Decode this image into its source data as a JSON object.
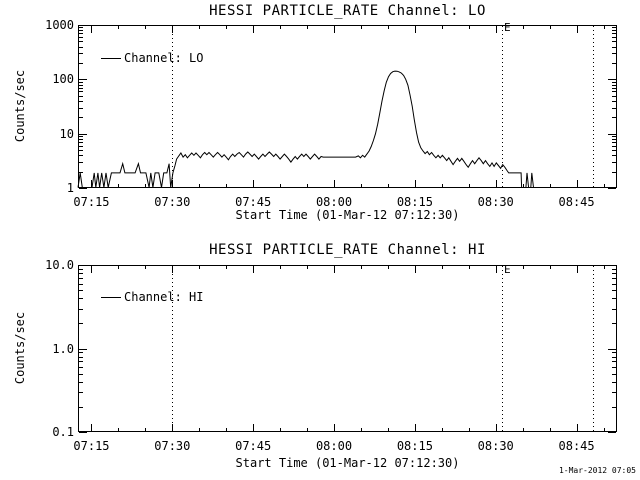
{
  "page": {
    "background": "#ffffff",
    "foreground": "#000000",
    "timestamp": "1-Mar-2012 07:05"
  },
  "chart_data": [
    {
      "type": "line",
      "title": "HESSI PARTICLE_RATE Channel: LO",
      "xlabel": "Start Time (01-Mar-12 07:12:30)",
      "ylabel": "Counts/sec",
      "yscale": "log",
      "ylim": [
        1,
        1000
      ],
      "y_ticks": {
        "values": [
          1,
          10,
          100,
          1000
        ],
        "labels": [
          "1",
          "10",
          "100",
          "1000"
        ]
      },
      "x_range_minutes": [
        0,
        100
      ],
      "x_ticks": {
        "minutes": [
          2.5,
          17.5,
          32.5,
          47.5,
          62.5,
          77.5,
          92.5
        ],
        "labels": [
          "07:15",
          "07:30",
          "07:45",
          "08:00",
          "08:15",
          "08:30",
          "08:45"
        ],
        "minor_step_minutes": 5
      },
      "grid": false,
      "legend": {
        "label": "Channel: LO",
        "position": "upper-left-inside"
      },
      "event_lines": [
        {
          "minutes": 17.5,
          "time": "07:30",
          "label": ""
        },
        {
          "minutes": 78.7,
          "time": "08:31",
          "label": "E"
        },
        {
          "minutes": 95.5,
          "time": "08:48",
          "label": ""
        }
      ],
      "series": [
        {
          "name": "Channel: LO",
          "points": [
            [
              0,
              1
            ],
            [
              0.4,
              1.9
            ],
            [
              0.8,
              1
            ],
            [
              2.6,
              1
            ],
            [
              3.0,
              1.9
            ],
            [
              3.3,
              1
            ],
            [
              3.7,
              1.9
            ],
            [
              4.0,
              1
            ],
            [
              4.4,
              1.9
            ],
            [
              4.8,
              1
            ],
            [
              5.2,
              1.9
            ],
            [
              5.6,
              1
            ],
            [
              6.2,
              1.9
            ],
            [
              7.0,
              1.9
            ],
            [
              7.8,
              1.9
            ],
            [
              8.3,
              2.8
            ],
            [
              8.7,
              1.9
            ],
            [
              9.6,
              1.9
            ],
            [
              10.6,
              1.9
            ],
            [
              11.2,
              2.8
            ],
            [
              11.6,
              1.9
            ],
            [
              12.6,
              1.9
            ],
            [
              13.2,
              1
            ],
            [
              13.5,
              1.9
            ],
            [
              13.9,
              1
            ],
            [
              14.3,
              1.9
            ],
            [
              15.0,
              1.9
            ],
            [
              15.5,
              1
            ],
            [
              15.9,
              1.9
            ],
            [
              16.5,
              1.9
            ],
            [
              16.9,
              2.8
            ],
            [
              17.2,
              1
            ],
            [
              17.6,
              1.9
            ],
            [
              18.0,
              2.6
            ],
            [
              18.3,
              3.4
            ],
            [
              18.7,
              3.9
            ],
            [
              19.1,
              4.4
            ],
            [
              19.5,
              3.7
            ],
            [
              19.9,
              4.1
            ],
            [
              20.3,
              3.6
            ],
            [
              20.7,
              4.0
            ],
            [
              21.1,
              4.4
            ],
            [
              21.5,
              4.0
            ],
            [
              21.9,
              4.4
            ],
            [
              22.3,
              4.0
            ],
            [
              22.7,
              3.6
            ],
            [
              23.1,
              4.1
            ],
            [
              23.5,
              4.5
            ],
            [
              23.9,
              4.1
            ],
            [
              24.3,
              4.5
            ],
            [
              24.7,
              4.1
            ],
            [
              25.1,
              3.7
            ],
            [
              25.5,
              4.1
            ],
            [
              25.9,
              4.5
            ],
            [
              26.3,
              4.1
            ],
            [
              26.7,
              3.7
            ],
            [
              27.1,
              4.1
            ],
            [
              27.5,
              3.7
            ],
            [
              27.9,
              3.3
            ],
            [
              28.3,
              3.8
            ],
            [
              28.7,
              4.2
            ],
            [
              29.1,
              3.8
            ],
            [
              29.5,
              4.2
            ],
            [
              29.9,
              4.5
            ],
            [
              30.3,
              4.1
            ],
            [
              30.7,
              3.7
            ],
            [
              31.1,
              4.2
            ],
            [
              31.5,
              4.6
            ],
            [
              31.9,
              4.2
            ],
            [
              32.3,
              3.8
            ],
            [
              32.7,
              4.2
            ],
            [
              33.1,
              3.8
            ],
            [
              33.5,
              3.4
            ],
            [
              33.9,
              3.8
            ],
            [
              34.3,
              4.2
            ],
            [
              34.7,
              3.8
            ],
            [
              35.1,
              4.2
            ],
            [
              35.5,
              4.6
            ],
            [
              35.9,
              4.2
            ],
            [
              36.3,
              3.8
            ],
            [
              36.7,
              4.2
            ],
            [
              37.1,
              3.8
            ],
            [
              37.5,
              3.4
            ],
            [
              37.9,
              3.8
            ],
            [
              38.3,
              4.2
            ],
            [
              38.7,
              3.8
            ],
            [
              39.1,
              3.4
            ],
            [
              39.5,
              3.0
            ],
            [
              39.9,
              3.4
            ],
            [
              40.3,
              3.8
            ],
            [
              40.7,
              3.4
            ],
            [
              41.1,
              3.8
            ],
            [
              41.5,
              4.2
            ],
            [
              41.9,
              3.8
            ],
            [
              42.3,
              4.2
            ],
            [
              42.7,
              3.8
            ],
            [
              43.1,
              3.4
            ],
            [
              43.5,
              3.8
            ],
            [
              43.9,
              4.2
            ],
            [
              44.3,
              3.8
            ],
            [
              44.7,
              3.4
            ],
            [
              45.1,
              3.8
            ],
            [
              45.5,
              3.7
            ],
            [
              46.5,
              3.7
            ],
            [
              47.5,
              3.7
            ],
            [
              48.5,
              3.7
            ],
            [
              49.5,
              3.7
            ],
            [
              50.5,
              3.7
            ],
            [
              51.5,
              3.7
            ],
            [
              52.0,
              3.9
            ],
            [
              52.4,
              3.6
            ],
            [
              52.8,
              4.0
            ],
            [
              53.2,
              3.7
            ],
            [
              53.6,
              4.2
            ],
            [
              54.0,
              4.8
            ],
            [
              54.4,
              5.8
            ],
            [
              54.8,
              7.5
            ],
            [
              55.2,
              10
            ],
            [
              55.6,
              15
            ],
            [
              56.0,
              24
            ],
            [
              56.4,
              40
            ],
            [
              56.8,
              62
            ],
            [
              57.2,
              88
            ],
            [
              57.6,
              112
            ],
            [
              58.0,
              128
            ],
            [
              58.4,
              138
            ],
            [
              58.8,
              142
            ],
            [
              59.2,
              141
            ],
            [
              59.6,
              137
            ],
            [
              60.0,
              130
            ],
            [
              60.4,
              118
            ],
            [
              60.8,
              100
            ],
            [
              61.2,
              78
            ],
            [
              61.6,
              52
            ],
            [
              62.0,
              32
            ],
            [
              62.4,
              18
            ],
            [
              62.8,
              10.5
            ],
            [
              63.2,
              7.0
            ],
            [
              63.6,
              5.5
            ],
            [
              64.0,
              4.8
            ],
            [
              64.4,
              4.3
            ],
            [
              64.8,
              4.7
            ],
            [
              65.2,
              4.1
            ],
            [
              65.6,
              4.5
            ],
            [
              66.0,
              4.0
            ],
            [
              66.4,
              3.6
            ],
            [
              66.8,
              4.0
            ],
            [
              67.2,
              3.6
            ],
            [
              67.6,
              4.0
            ],
            [
              68.0,
              3.6
            ],
            [
              68.4,
              3.2
            ],
            [
              68.8,
              3.6
            ],
            [
              69.2,
              3.1
            ],
            [
              69.6,
              2.7
            ],
            [
              70.0,
              3.1
            ],
            [
              70.4,
              3.5
            ],
            [
              70.8,
              3.1
            ],
            [
              71.2,
              3.5
            ],
            [
              71.6,
              3.1
            ],
            [
              72.0,
              2.7
            ],
            [
              72.4,
              2.4
            ],
            [
              72.8,
              2.8
            ],
            [
              73.2,
              3.2
            ],
            [
              73.6,
              2.8
            ],
            [
              74.0,
              3.2
            ],
            [
              74.4,
              3.6
            ],
            [
              74.8,
              3.2
            ],
            [
              75.2,
              2.8
            ],
            [
              75.6,
              3.2
            ],
            [
              76.0,
              2.8
            ],
            [
              76.4,
              2.5
            ],
            [
              76.8,
              2.9
            ],
            [
              77.2,
              2.5
            ],
            [
              77.6,
              2.9
            ],
            [
              78.0,
              2.6
            ],
            [
              78.4,
              2.3
            ],
            [
              78.8,
              2.7
            ],
            [
              79.2,
              2.4
            ],
            [
              79.6,
              2.1
            ],
            [
              79.9,
              1.9
            ],
            [
              82.2,
              1.9
            ],
            [
              82.3,
              1
            ],
            [
              83.1,
              1
            ],
            [
              83.3,
              1.9
            ],
            [
              83.6,
              1
            ],
            [
              84.0,
              1
            ],
            [
              84.2,
              1.9
            ],
            [
              84.5,
              1
            ],
            [
              85.5,
              1
            ]
          ]
        }
      ]
    },
    {
      "type": "line",
      "title": "HESSI PARTICLE_RATE Channel: HI",
      "xlabel": "Start Time (01-Mar-12 07:12:30)",
      "ylabel": "Counts/sec",
      "yscale": "log",
      "ylim": [
        0.1,
        10.0
      ],
      "y_ticks": {
        "values": [
          0.1,
          1.0,
          10.0
        ],
        "labels": [
          "0.1",
          "1.0",
          "10.0"
        ]
      },
      "x_range_minutes": [
        0,
        100
      ],
      "x_ticks": {
        "minutes": [
          2.5,
          17.5,
          32.5,
          47.5,
          62.5,
          77.5,
          92.5
        ],
        "labels": [
          "07:15",
          "07:30",
          "07:45",
          "08:00",
          "08:15",
          "08:30",
          "08:45"
        ],
        "minor_step_minutes": 5
      },
      "grid": false,
      "legend": {
        "label": "Channel: HI",
        "position": "upper-left-inside"
      },
      "event_lines": [
        {
          "minutes": 17.5,
          "time": "07:30",
          "label": ""
        },
        {
          "minutes": 78.7,
          "time": "08:31",
          "label": "E"
        },
        {
          "minutes": 95.5,
          "time": "08:48",
          "label": ""
        }
      ],
      "series": [
        {
          "name": "Channel: HI",
          "points": []
        }
      ]
    }
  ]
}
